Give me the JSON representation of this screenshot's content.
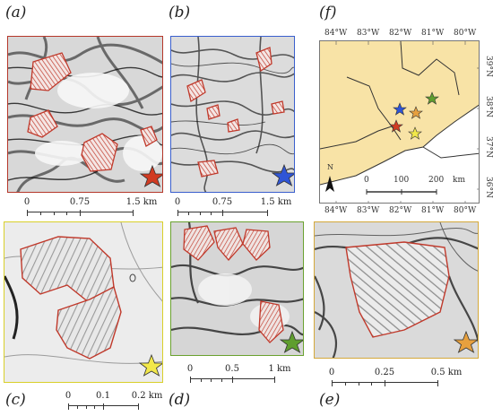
{
  "panels": {
    "a": {
      "letter": "(a)",
      "border": "#b5372a",
      "star": "#d13b22",
      "scale": [
        "0",
        "0.75",
        "1.5 km"
      ]
    },
    "b": {
      "letter": "(b)",
      "border": "#3a5fcd",
      "star": "#2f55d6",
      "scale": [
        "0",
        "0.75",
        "1.5 km"
      ]
    },
    "c": {
      "letter": "(c)",
      "border": "#d9d02a",
      "star": "#f2e84a",
      "scale": [
        "0",
        "0.1",
        "0.2 km"
      ]
    },
    "d": {
      "letter": "(d)",
      "border": "#6aa12f",
      "star": "#5f9e2e",
      "scale": [
        "0",
        "0.5",
        "1 km"
      ]
    },
    "e": {
      "letter": "(e)",
      "border": "#d4a83a",
      "star": "#e7a03e",
      "scale": [
        "0",
        "0.25",
        "0.5 km"
      ]
    },
    "f": {
      "letter": "(f)",
      "border": "#777777",
      "lon_labels": [
        "84°W",
        "83°W",
        "82°W",
        "81°W",
        "80°W"
      ],
      "lat_labels": [
        "39°N",
        "38°N",
        "37°N",
        "36°N"
      ],
      "north": "N",
      "scale": [
        "0",
        "100",
        "200",
        "km"
      ],
      "land_color": "#f8e3a6"
    }
  },
  "colors": {
    "mine_outline": "#c0392b",
    "hatch": "#c0392b"
  }
}
